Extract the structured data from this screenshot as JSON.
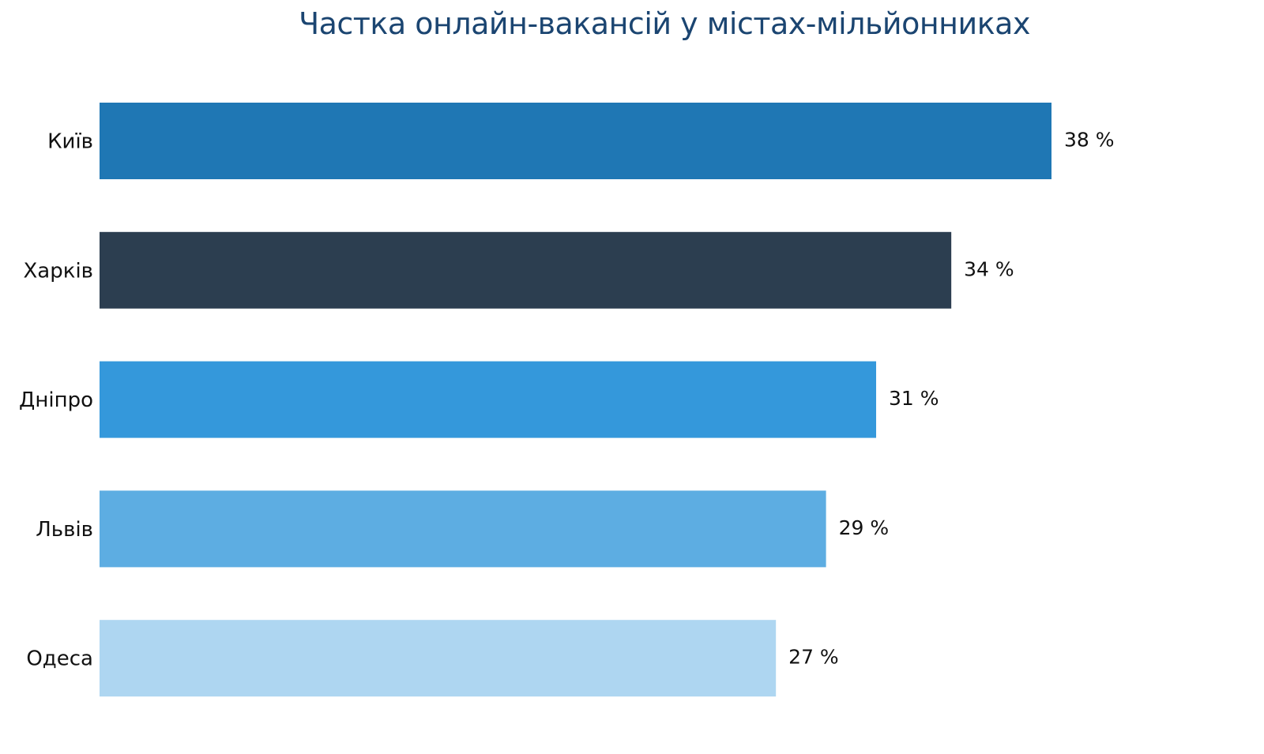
{
  "chart_data": {
    "type": "bar",
    "orientation": "horizontal",
    "title": "Частка онлайн-вакансій у містах-мільйонниках",
    "xlabel": "",
    "ylabel": "",
    "categories": [
      "Київ",
      "Харків",
      "Дніпро",
      "Львів",
      "Одеса"
    ],
    "values": [
      38,
      34,
      31,
      29,
      27
    ],
    "value_labels": [
      "38 %",
      "34 %",
      "31 %",
      "29 %",
      "27 %"
    ],
    "colors": [
      "#1f77b4",
      "#2c3e50",
      "#3498db",
      "#5dade2",
      "#aed6f1"
    ],
    "xlim": [
      0,
      38
    ],
    "grid": false
  }
}
